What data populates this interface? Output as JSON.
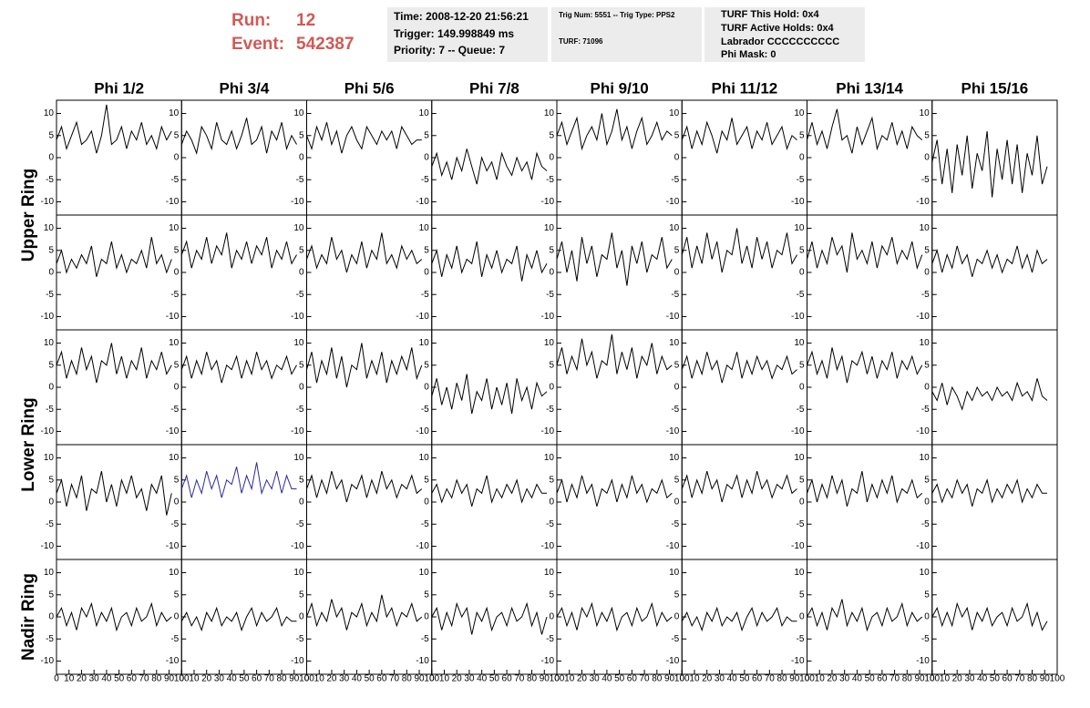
{
  "header": {
    "run_label": "Run:",
    "run": "12",
    "event_label": "Event:",
    "event": "542387",
    "time": "Time: 2008-12-20 21:56:21",
    "trigger": "Trigger: 149.998849 ms",
    "priority": "Priority: 7 -- Queue: 7",
    "trig_num": "Trig Num: 5551 -- Trig Type: PPS2",
    "turf": "TURF: 71096",
    "turf_hold": "TURF This Hold: 0x4",
    "turf_active": "TURF Active Holds: 0x4",
    "labrador": "Labrador CCCCCCCCCC",
    "phi_mask": "Phi Mask: 0"
  },
  "chart_data": {
    "type": "line",
    "columns": [
      "Phi 1/2",
      "Phi 3/4",
      "Phi 5/6",
      "Phi 7/8",
      "Phi 9/10",
      "Phi 11/12",
      "Phi 13/14",
      "Phi 15/16"
    ],
    "rings": [
      "Upper Ring",
      "Lower Ring",
      "Nadir Ring"
    ],
    "x": [
      0,
      4,
      8,
      12,
      16,
      20,
      24,
      28,
      32,
      36,
      40,
      44,
      48,
      52,
      56,
      60,
      64,
      68,
      72,
      76,
      80,
      84,
      88,
      92
    ],
    "xlim": [
      0,
      100
    ],
    "xticks": [
      0,
      10,
      20,
      30,
      40,
      50,
      60,
      70,
      80,
      90,
      100
    ],
    "ylim": [
      -13,
      13
    ],
    "yticks": [
      -10,
      -5,
      0,
      5,
      10
    ],
    "panels": [
      [
        {
          "color": "#000000",
          "values": [
            4,
            7,
            2,
            5,
            8,
            3,
            4,
            6,
            1,
            5,
            12,
            3,
            4,
            7,
            2,
            6,
            4,
            8,
            3,
            5,
            2,
            7,
            4,
            6
          ]
        },
        {
          "color": "#000000",
          "values": [
            3,
            6,
            4,
            1,
            7,
            5,
            2,
            8,
            4,
            3,
            6,
            2,
            5,
            9,
            3,
            4,
            7,
            1,
            6,
            4,
            8,
            2,
            5,
            3
          ]
        },
        {
          "color": "#000000",
          "values": [
            5,
            2,
            7,
            4,
            8,
            3,
            6,
            1,
            5,
            7,
            4,
            2,
            7,
            5,
            3,
            6,
            4,
            6,
            2,
            7,
            5,
            3,
            4,
            4
          ]
        },
        {
          "color": "#000000",
          "values": [
            -2,
            1,
            -4,
            -1,
            -5,
            0,
            -3,
            2,
            -2,
            -6,
            0,
            -3,
            -1,
            -5,
            1,
            -2,
            -4,
            0,
            -3,
            -1,
            -5,
            1,
            -2,
            -3
          ]
        },
        {
          "color": "#000000",
          "values": [
            5,
            8,
            3,
            6,
            9,
            2,
            5,
            7,
            4,
            10,
            3,
            6,
            11,
            4,
            7,
            2,
            6,
            9,
            3,
            5,
            8,
            4,
            6,
            5
          ]
        },
        {
          "color": "#000000",
          "values": [
            4,
            7,
            2,
            6,
            3,
            8,
            5,
            1,
            6,
            4,
            9,
            3,
            5,
            7,
            2,
            6,
            4,
            8,
            3,
            5,
            7,
            2,
            5,
            4
          ]
        },
        {
          "color": "#000000",
          "values": [
            4,
            8,
            3,
            6,
            2,
            7,
            11,
            4,
            5,
            1,
            7,
            3,
            6,
            9,
            2,
            5,
            4,
            8,
            3,
            6,
            2,
            7,
            5,
            4
          ]
        },
        {
          "color": "#000000",
          "values": [
            -1,
            4,
            -6,
            2,
            -8,
            3,
            -4,
            5,
            -7,
            1,
            -3,
            6,
            -9,
            2,
            -5,
            4,
            -6,
            3,
            -8,
            1,
            -4,
            5,
            -6,
            -2
          ]
        }
      ],
      [
        {
          "color": "#000000",
          "values": [
            2,
            5,
            0,
            3,
            1,
            4,
            2,
            6,
            -1,
            3,
            2,
            7,
            1,
            4,
            0,
            3,
            2,
            5,
            1,
            8,
            2,
            4,
            0,
            3
          ]
        },
        {
          "color": "#000000",
          "values": [
            4,
            7,
            1,
            5,
            3,
            8,
            2,
            6,
            4,
            9,
            1,
            5,
            3,
            7,
            2,
            6,
            4,
            8,
            1,
            5,
            3,
            7,
            2,
            4
          ]
        },
        {
          "color": "#000000",
          "values": [
            3,
            6,
            1,
            4,
            2,
            8,
            3,
            5,
            0,
            4,
            2,
            7,
            1,
            5,
            3,
            9,
            2,
            4,
            1,
            6,
            3,
            5,
            2,
            3
          ]
        },
        {
          "color": "#000000",
          "values": [
            2,
            5,
            -1,
            4,
            1,
            6,
            0,
            3,
            2,
            7,
            -1,
            4,
            1,
            5,
            0,
            3,
            2,
            6,
            -2,
            4,
            1,
            5,
            0,
            2
          ]
        },
        {
          "color": "#000000",
          "values": [
            3,
            7,
            0,
            5,
            -2,
            8,
            2,
            6,
            -1,
            4,
            3,
            9,
            1,
            5,
            -3,
            6,
            2,
            7,
            0,
            4,
            3,
            8,
            1,
            3
          ]
        },
        {
          "color": "#000000",
          "values": [
            4,
            8,
            1,
            6,
            2,
            9,
            3,
            7,
            0,
            5,
            4,
            10,
            2,
            6,
            1,
            8,
            3,
            7,
            1,
            5,
            4,
            9,
            2,
            4
          ]
        },
        {
          "color": "#000000",
          "values": [
            3,
            7,
            1,
            5,
            2,
            8,
            4,
            6,
            0,
            9,
            3,
            5,
            2,
            7,
            1,
            6,
            4,
            8,
            2,
            5,
            3,
            7,
            1,
            4
          ]
        },
        {
          "color": "#000000",
          "values": [
            2,
            5,
            0,
            4,
            1,
            6,
            2,
            4,
            -1,
            3,
            2,
            5,
            1,
            4,
            0,
            3,
            2,
            6,
            1,
            4,
            0,
            5,
            2,
            3
          ]
        }
      ],
      [
        {
          "color": "#000000",
          "values": [
            5,
            8,
            2,
            6,
            3,
            9,
            4,
            7,
            1,
            6,
            5,
            10,
            3,
            7,
            2,
            6,
            4,
            9,
            2,
            6,
            4,
            8,
            3,
            5
          ]
        },
        {
          "color": "#000000",
          "values": [
            4,
            7,
            2,
            6,
            3,
            8,
            4,
            6,
            1,
            5,
            4,
            7,
            2,
            6,
            3,
            8,
            4,
            6,
            2,
            5,
            4,
            7,
            3,
            5
          ]
        },
        {
          "color": "#000000",
          "values": [
            4,
            8,
            1,
            6,
            3,
            9,
            2,
            7,
            0,
            5,
            4,
            10,
            2,
            6,
            3,
            8,
            1,
            6,
            3,
            7,
            4,
            9,
            2,
            5
          ]
        },
        {
          "color": "#000000",
          "values": [
            -2,
            2,
            -4,
            0,
            -5,
            1,
            -3,
            3,
            -6,
            -1,
            -3,
            2,
            -5,
            0,
            -4,
            1,
            -6,
            2,
            -3,
            0,
            -5,
            1,
            -2,
            -1
          ]
        },
        {
          "color": "#000000",
          "values": [
            5,
            9,
            3,
            7,
            4,
            11,
            5,
            8,
            2,
            6,
            5,
            12,
            3,
            8,
            4,
            9,
            2,
            7,
            5,
            10,
            3,
            7,
            4,
            5
          ]
        },
        {
          "color": "#000000",
          "values": [
            4,
            7,
            2,
            6,
            3,
            8,
            4,
            6,
            1,
            5,
            4,
            8,
            2,
            6,
            3,
            7,
            4,
            6,
            2,
            5,
            4,
            7,
            3,
            4
          ]
        },
        {
          "color": "#000000",
          "values": [
            5,
            8,
            3,
            6,
            2,
            9,
            4,
            7,
            1,
            6,
            5,
            8,
            3,
            7,
            2,
            6,
            4,
            8,
            2,
            6,
            4,
            7,
            3,
            5
          ]
        },
        {
          "color": "#000000",
          "values": [
            -1,
            -3,
            1,
            -4,
            0,
            -2,
            -5,
            -1,
            -3,
            0,
            -2,
            -1,
            -3,
            0,
            -2,
            -1,
            -3,
            1,
            -2,
            -1,
            -3,
            2,
            -2,
            -3
          ]
        }
      ],
      [
        {
          "color": "#000000",
          "values": [
            2,
            5,
            -1,
            4,
            1,
            6,
            -2,
            3,
            2,
            7,
            0,
            4,
            -1,
            5,
            2,
            6,
            1,
            3,
            -2,
            4,
            2,
            6,
            -3,
            2
          ]
        },
        {
          "color": "#2a2aa0",
          "values": [
            3,
            6,
            1,
            5,
            2,
            7,
            3,
            6,
            1,
            5,
            4,
            8,
            2,
            6,
            3,
            9,
            2,
            5,
            3,
            7,
            2,
            6,
            3,
            3
          ]
        },
        {
          "color": "#000000",
          "values": [
            3,
            6,
            1,
            5,
            2,
            7,
            3,
            5,
            0,
            4,
            3,
            6,
            1,
            5,
            2,
            7,
            3,
            5,
            1,
            4,
            3,
            6,
            2,
            3
          ]
        },
        {
          "color": "#000000",
          "values": [
            2,
            4,
            0,
            3,
            1,
            5,
            2,
            4,
            -1,
            3,
            2,
            6,
            0,
            3,
            1,
            4,
            2,
            5,
            0,
            3,
            1,
            4,
            2,
            2
          ]
        },
        {
          "color": "#000000",
          "values": [
            2,
            5,
            0,
            4,
            1,
            6,
            2,
            4,
            -1,
            3,
            2,
            5,
            0,
            4,
            1,
            6,
            2,
            4,
            0,
            3,
            2,
            5,
            1,
            2
          ]
        },
        {
          "color": "#000000",
          "values": [
            3,
            6,
            1,
            5,
            2,
            7,
            3,
            5,
            0,
            4,
            3,
            6,
            1,
            5,
            2,
            7,
            3,
            5,
            1,
            4,
            3,
            6,
            2,
            3
          ]
        },
        {
          "color": "#000000",
          "values": [
            2,
            5,
            0,
            4,
            1,
            6,
            2,
            5,
            -1,
            3,
            2,
            7,
            0,
            4,
            1,
            5,
            2,
            6,
            0,
            3,
            2,
            5,
            1,
            2
          ]
        },
        {
          "color": "#000000",
          "values": [
            2,
            4,
            0,
            3,
            1,
            5,
            2,
            4,
            -1,
            3,
            2,
            5,
            0,
            3,
            1,
            4,
            2,
            5,
            0,
            3,
            1,
            4,
            2,
            2
          ]
        }
      ],
      [
        {
          "color": "#000000",
          "values": [
            0,
            2,
            -2,
            1,
            -3,
            2,
            0,
            3,
            -2,
            1,
            -1,
            2,
            -3,
            0,
            1,
            -2,
            2,
            -1,
            0,
            3,
            -2,
            1,
            -1,
            0
          ]
        },
        {
          "color": "#000000",
          "values": [
            -1,
            1,
            -2,
            0,
            -3,
            1,
            -1,
            2,
            -2,
            0,
            -1,
            1,
            -3,
            0,
            2,
            -2,
            1,
            -1,
            0,
            2,
            -2,
            0,
            -1,
            -1
          ]
        },
        {
          "color": "#000000",
          "values": [
            0,
            3,
            -2,
            1,
            -1,
            4,
            0,
            2,
            -3,
            1,
            0,
            3,
            -2,
            1,
            -1,
            5,
            0,
            2,
            -2,
            1,
            0,
            3,
            -1,
            0
          ]
        },
        {
          "color": "#000000",
          "values": [
            0,
            2,
            -3,
            1,
            -2,
            3,
            0,
            2,
            -4,
            1,
            -1,
            2,
            -3,
            0,
            1,
            -2,
            2,
            -1,
            0,
            3,
            -2,
            1,
            -4,
            0
          ]
        },
        {
          "color": "#000000",
          "values": [
            0,
            2,
            -2,
            1,
            -3,
            2,
            0,
            3,
            -2,
            1,
            -1,
            2,
            -3,
            0,
            1,
            -2,
            2,
            -1,
            0,
            3,
            -2,
            1,
            -1,
            0
          ]
        },
        {
          "color": "#000000",
          "values": [
            -1,
            1,
            -2,
            0,
            -3,
            1,
            -1,
            2,
            -2,
            0,
            -1,
            1,
            -3,
            0,
            2,
            -2,
            1,
            -1,
            0,
            2,
            -2,
            0,
            -1,
            -1
          ]
        },
        {
          "color": "#000000",
          "values": [
            0,
            2,
            -2,
            1,
            -3,
            2,
            0,
            4,
            -2,
            1,
            -1,
            2,
            -3,
            0,
            1,
            -2,
            2,
            -1,
            0,
            3,
            -2,
            1,
            -1,
            0
          ]
        },
        {
          "color": "#000000",
          "values": [
            0,
            2,
            -2,
            1,
            -2,
            3,
            0,
            2,
            -3,
            1,
            -1,
            2,
            -2,
            0,
            1,
            -2,
            2,
            -1,
            0,
            3,
            -2,
            1,
            -3,
            -1
          ]
        }
      ]
    ]
  }
}
